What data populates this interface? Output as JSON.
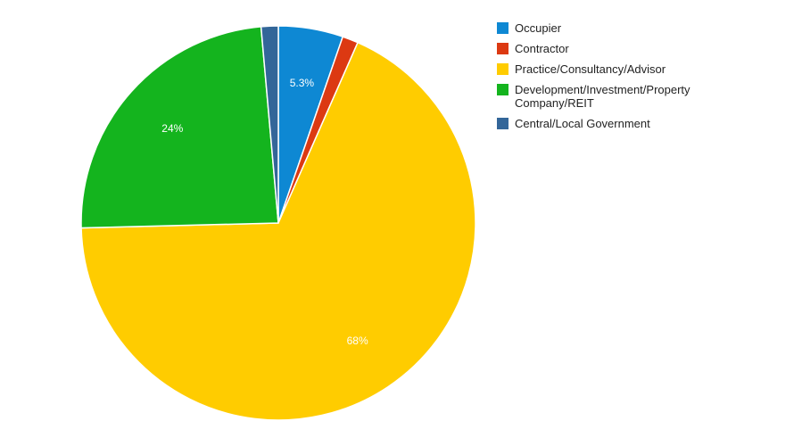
{
  "chart_data": {
    "type": "pie",
    "title": "",
    "legend_position": "right",
    "slices": [
      {
        "label": "Occupier",
        "value": 5.3,
        "color": "#0e88d3",
        "data_label": "5.3%"
      },
      {
        "label": "Contractor",
        "value": 1.3,
        "color": "#dc3912",
        "data_label": ""
      },
      {
        "label": "Practice/Consultancy/Advisor",
        "value": 68,
        "color": "#ffcc00",
        "data_label": "68%"
      },
      {
        "label": "Development/Investment/Property Company/REIT",
        "value": 24,
        "color": "#14b41e",
        "data_label": "24%"
      },
      {
        "label": "Central/Local Government",
        "value": 1.4,
        "color": "#336699",
        "data_label": ""
      }
    ]
  }
}
